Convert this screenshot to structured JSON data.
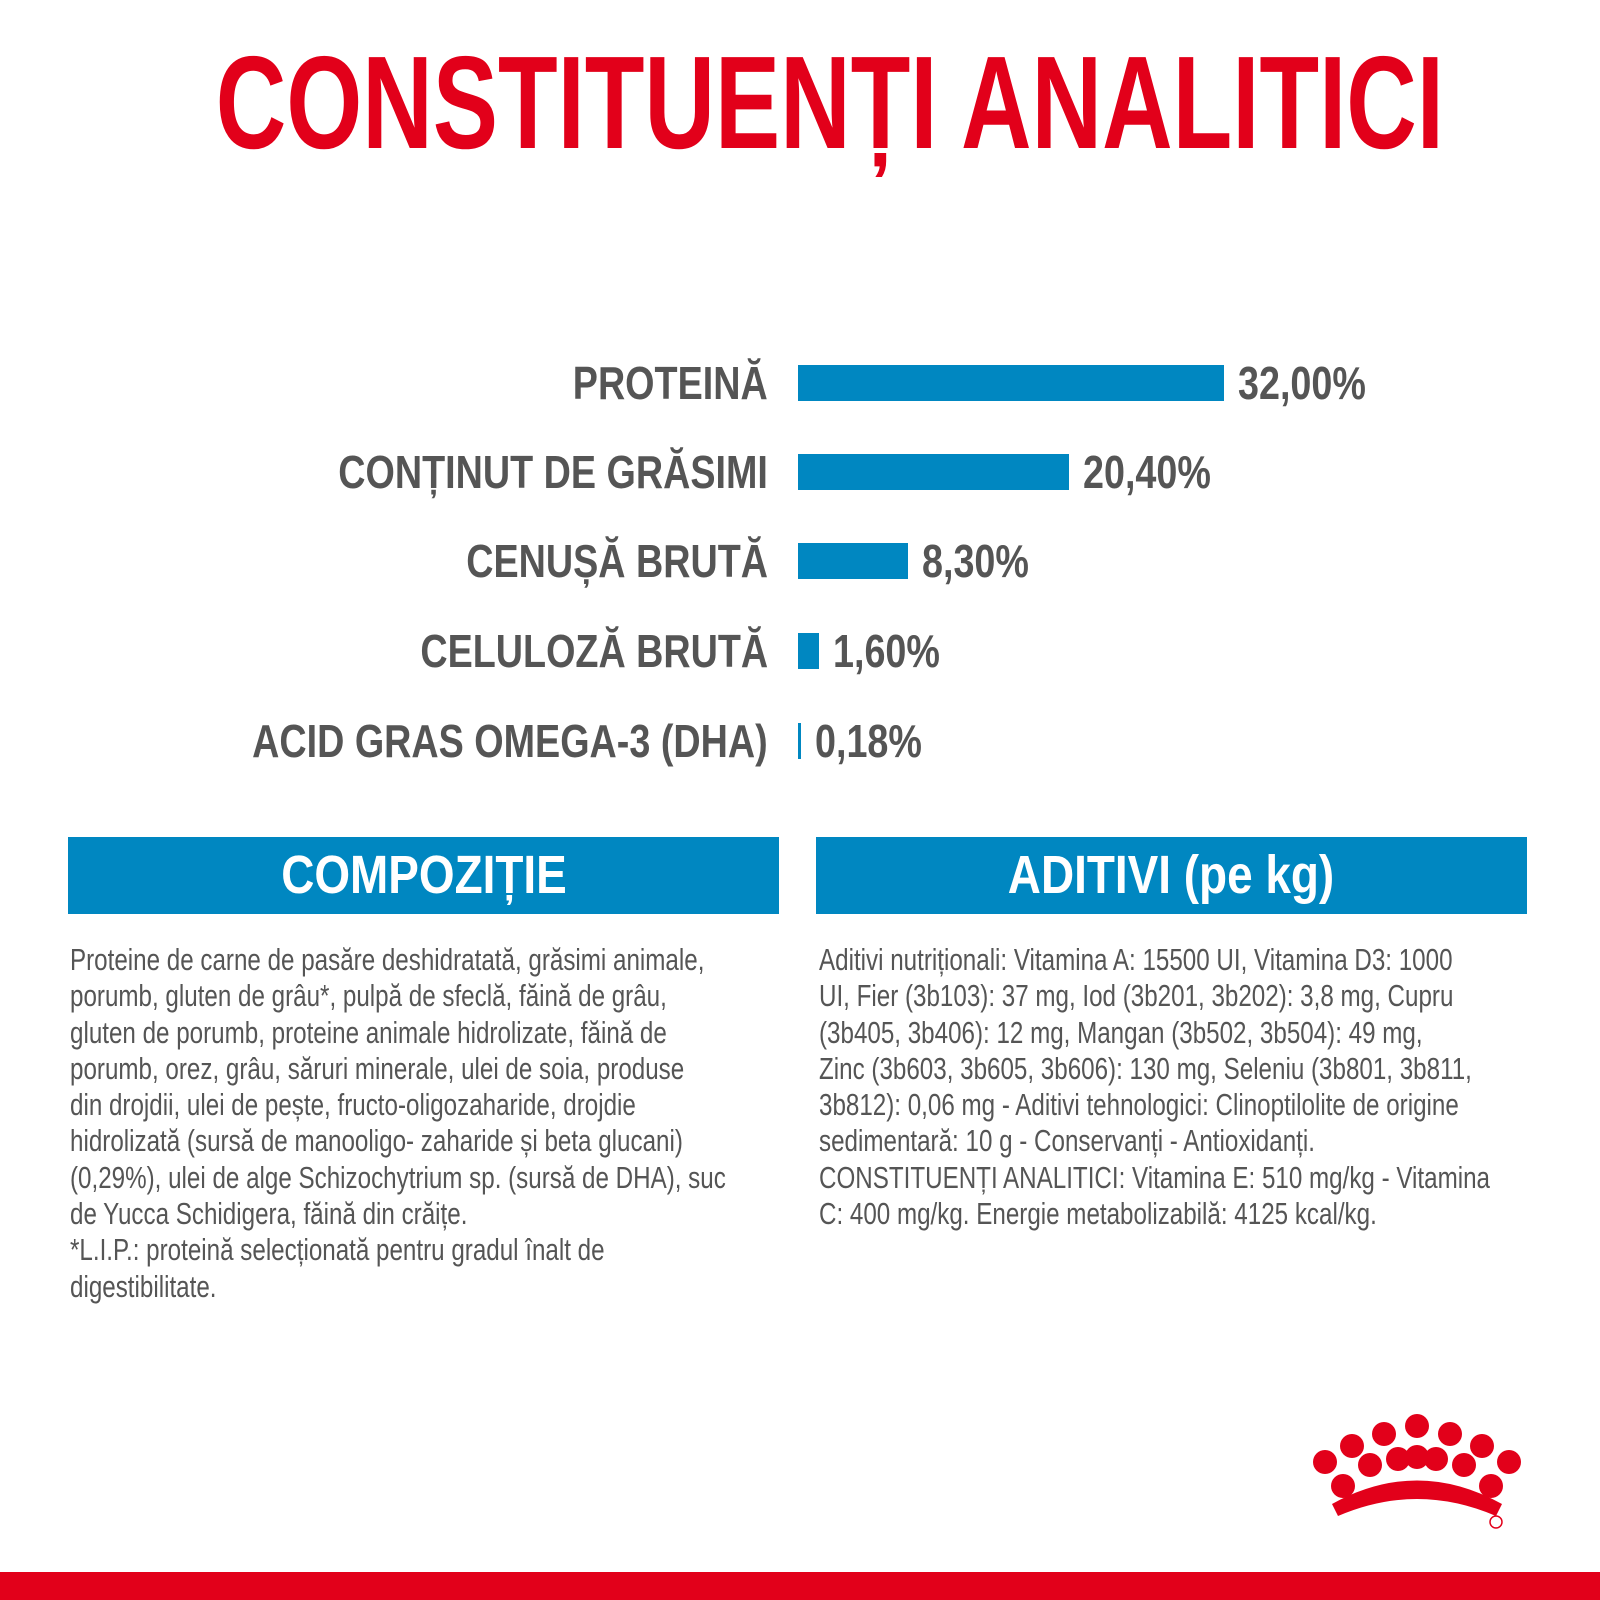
{
  "title": "CONSTITUENȚI ANALITICI",
  "colors": {
    "title": "#e2001a",
    "bar": "#0087c1",
    "text": "#555555",
    "brand": "#e2001a"
  },
  "chart_data": {
    "type": "bar",
    "orientation": "horizontal",
    "categories": [
      "PROTEINĂ",
      "CONȚINUT DE GRĂSIMI",
      "CENUȘĂ BRUTĂ",
      "CELULOZĂ BRUTĂ",
      "ACID GRAS OMEGA-3 (DHA)"
    ],
    "values": [
      32.0,
      20.4,
      8.3,
      1.6,
      0.18
    ],
    "labels": [
      "32,00%",
      "20,40%",
      "8,30%",
      "1,60%",
      "0,18%"
    ],
    "unit": "%",
    "grid": false
  },
  "composition": {
    "header": "COMPOZIȚIE",
    "lines": [
      "Proteine de carne de pasăre deshidratată, grăsimi animale,",
      "porumb, gluten de grâu*, pulpă de sfeclă, făină de grâu,",
      "gluten de porumb, proteine animale hidrolizate, făină de",
      "porumb, orez, grâu, săruri minerale, ulei de soia, produse",
      "din drojdii, ulei de pește, fructo-oligozaharide, drojdie",
      "hidrolizată (sursă de manooligo- zaharide și beta glucani)",
      "(0,29%), ulei de alge Schizochytrium sp. (sursă de DHA), suc",
      "de Yucca Schidigera, făină din crăițe.",
      "*L.I.P.: proteină selecționată pentru gradul înalt de",
      "digestibilitate."
    ]
  },
  "additives": {
    "header": "ADITIVI (pe kg)",
    "lines": [
      "Aditivi nutriționali: Vitamina A: 15500 UI, Vitamina D3: 1000",
      "UI, Fier (3b103): 37 mg, Iod (3b201, 3b202): 3,8 mg, Cupru",
      "(3b405, 3b406): 12 mg, Mangan (3b502, 3b504): 49 mg,",
      "Zinc (3b603, 3b605, 3b606): 130 mg, Seleniu (3b801, 3b811,",
      "3b812): 0,06 mg - Aditivi tehnologici: Clinoptilolite de origine",
      "sedimentară: 10 g - Conservanți - Antioxidanți.",
      "CONSTITUENȚI ANALITICI: Vitamina E: 510 mg/kg - Vitamina",
      "C: 400 mg/kg. Energie metabolizabilă: 4125 kcal/kg."
    ]
  },
  "logo": {
    "icon": "royal-canin-crown-logo"
  }
}
